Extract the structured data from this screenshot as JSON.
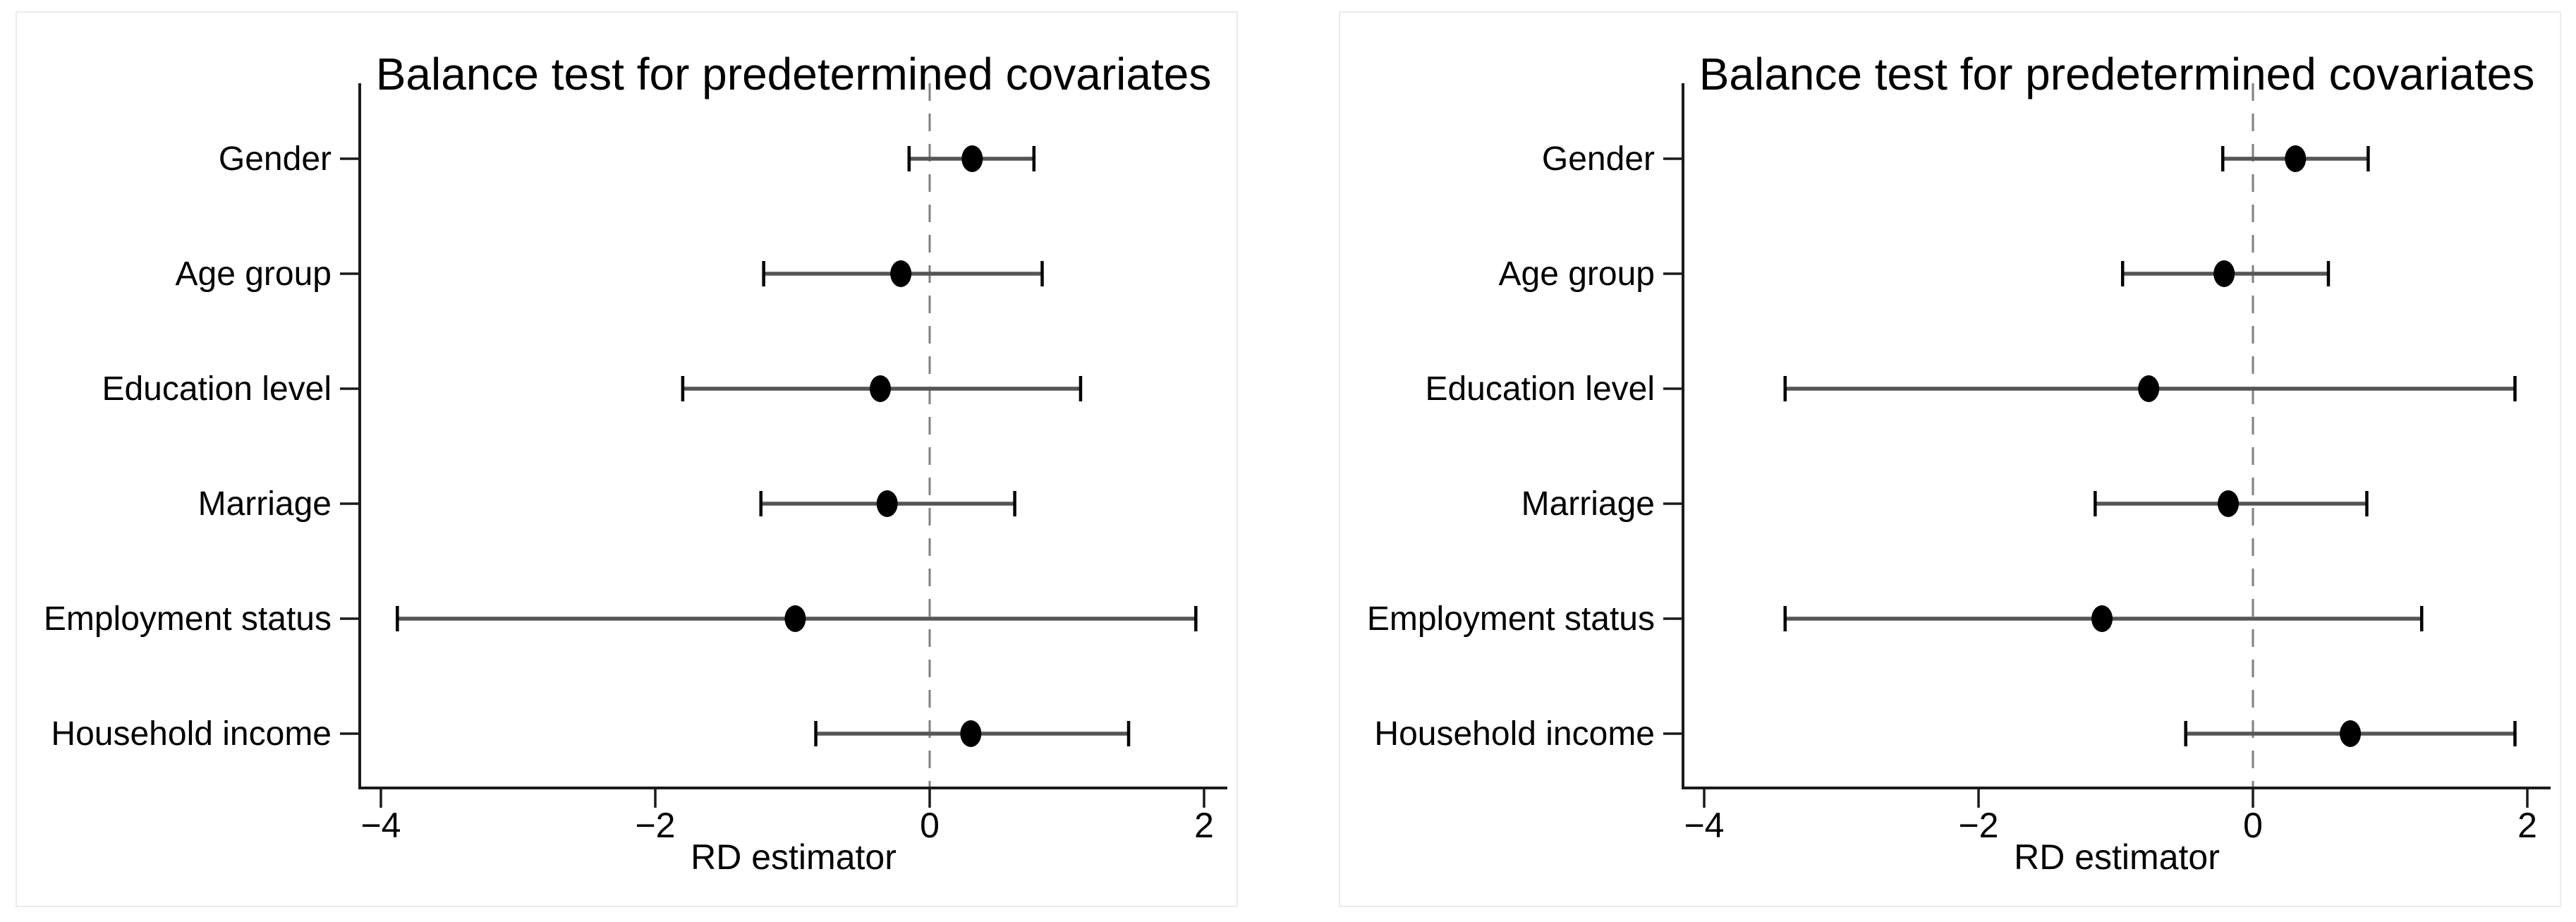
{
  "style": {
    "background": "#ffffff",
    "panel_border_color": "#e4edf3",
    "axis_color": "#1a1a1a",
    "text_color": "#000000",
    "ci_line_color": "#555558",
    "cap_color": "#000000",
    "marker_color": "#000000",
    "zero_line_color": "#7f7f7f"
  },
  "chart_data": [
    {
      "type": "scatter",
      "subtype": "coefficient-dot-whisker",
      "title": "Balance test for predetermined covariates",
      "xlabel": "RD estimator",
      "xlim": [
        -4.25,
        2.27
      ],
      "grid": false,
      "legend": "none",
      "zero_line": {
        "x": 0,
        "style": "dashed"
      },
      "x_ticks": [
        {
          "value": -4,
          "label": "−4"
        },
        {
          "value": -2,
          "label": "−2"
        },
        {
          "value": 0,
          "label": "0"
        },
        {
          "value": 2,
          "label": "2"
        }
      ],
      "rows": [
        {
          "label": "Gender",
          "estimate": 0.31,
          "ci_low": -0.15,
          "ci_high": 0.76
        },
        {
          "label": "Age group",
          "estimate": -0.21,
          "ci_low": -1.21,
          "ci_high": 0.82
        },
        {
          "label": "Education level",
          "estimate": -0.36,
          "ci_low": -1.8,
          "ci_high": 1.1
        },
        {
          "label": "Marriage",
          "estimate": -0.31,
          "ci_low": -1.23,
          "ci_high": 0.62
        },
        {
          "label": "Employment status",
          "estimate": -0.98,
          "ci_low": -3.88,
          "ci_high": 1.94
        },
        {
          "label": "Household income",
          "estimate": 0.3,
          "ci_low": -0.83,
          "ci_high": 1.45
        }
      ]
    },
    {
      "type": "scatter",
      "subtype": "coefficient-dot-whisker",
      "title": "Balance test for predetermined covariates",
      "xlabel": "RD estimator",
      "xlim": [
        -4.25,
        2.27
      ],
      "grid": false,
      "legend": "none",
      "zero_line": {
        "x": 0,
        "style": "dashed"
      },
      "x_ticks": [
        {
          "value": -4,
          "label": "−4"
        },
        {
          "value": -2,
          "label": "−2"
        },
        {
          "value": 0,
          "label": "0"
        },
        {
          "value": 2,
          "label": "2"
        }
      ],
      "rows": [
        {
          "label": "Gender",
          "estimate": 0.31,
          "ci_low": -0.22,
          "ci_high": 0.84
        },
        {
          "label": "Age group",
          "estimate": -0.21,
          "ci_low": -0.95,
          "ci_high": 0.55
        },
        {
          "label": "Education level",
          "estimate": -0.76,
          "ci_low": -3.41,
          "ci_high": 1.91
        },
        {
          "label": "Marriage",
          "estimate": -0.18,
          "ci_low": -1.15,
          "ci_high": 0.83
        },
        {
          "label": "Employment status",
          "estimate": -1.1,
          "ci_low": -3.41,
          "ci_high": 1.23
        },
        {
          "label": "Household income",
          "estimate": 0.71,
          "ci_low": -0.49,
          "ci_high": 1.91
        }
      ]
    }
  ]
}
